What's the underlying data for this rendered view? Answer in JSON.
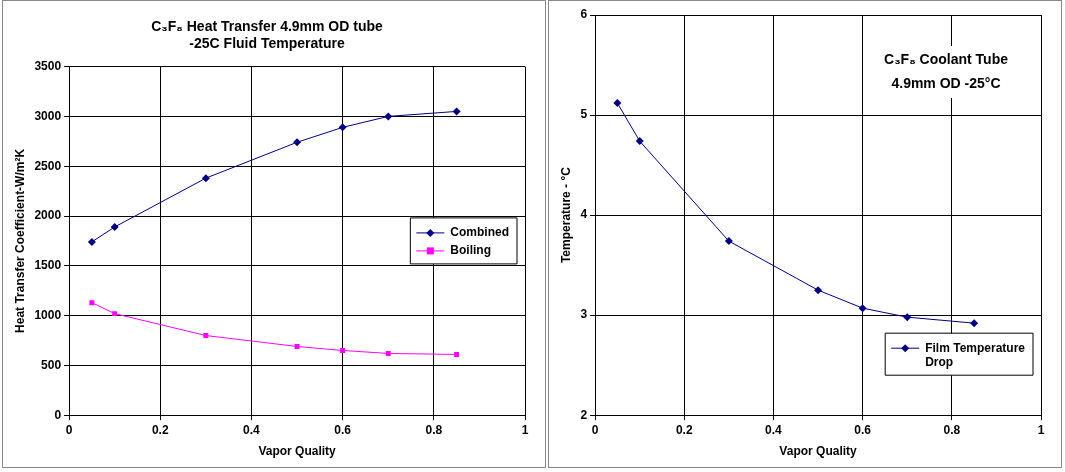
{
  "chart_data": [
    {
      "type": "line",
      "title": "C₃F₈ Heat Transfer 4.9mm OD tube\n-25C Fluid Temperature",
      "xlabel": "Vapor Quality",
      "ylabel": "Heat Transfer Coefficient-W/m²K",
      "x": [
        0.05,
        0.1,
        0.3,
        0.5,
        0.6,
        0.7,
        0.85
      ],
      "series": [
        {
          "name": "Combined",
          "color": "#000080",
          "marker": "diamond",
          "values": [
            1740,
            1890,
            2380,
            2740,
            2890,
            3000,
            3050
          ]
        },
        {
          "name": "Boiling",
          "color": "#ff00ff",
          "marker": "square",
          "values": [
            1130,
            1020,
            800,
            690,
            650,
            620,
            610
          ]
        }
      ],
      "xlim": [
        0,
        1
      ],
      "xticks": [
        0,
        0.2,
        0.4,
        0.6,
        0.8,
        1
      ],
      "ylim": [
        0,
        3500
      ],
      "yticks": [
        0,
        500,
        1000,
        1500,
        2000,
        2500,
        3000,
        3500
      ],
      "grid": true,
      "legend": "right",
      "line_style": "solid"
    },
    {
      "type": "line",
      "xlabel": "Vapor Quality",
      "ylabel": "Temperature - °C",
      "annotations": [
        "C₃F₈ Coolant Tube\n4.9mm OD -25°C"
      ],
      "x": [
        0.05,
        0.1,
        0.3,
        0.5,
        0.6,
        0.7,
        0.85
      ],
      "series": [
        {
          "name": "Film Temperature\nDrop",
          "color": "#000080",
          "marker": "diamond",
          "values": [
            5.12,
            4.74,
            3.74,
            3.25,
            3.07,
            2.98,
            2.92
          ]
        }
      ],
      "xlim": [
        0,
        1
      ],
      "xticks": [
        0,
        0.2,
        0.4,
        0.6,
        0.8,
        1
      ],
      "ylim": [
        2,
        6
      ],
      "yticks": [
        2,
        3,
        4,
        5,
        6
      ],
      "grid": true,
      "legend": "bottom right",
      "line_style": "solid"
    }
  ]
}
